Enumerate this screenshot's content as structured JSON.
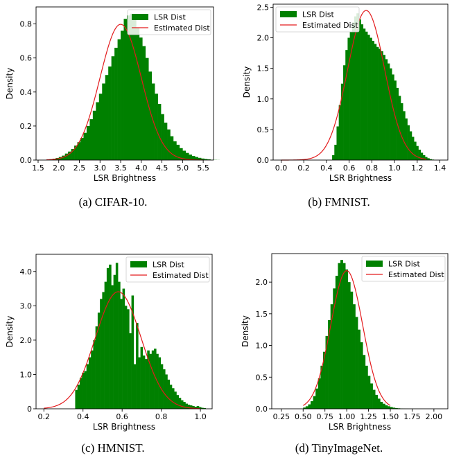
{
  "colors": {
    "hist": "#008000",
    "curve": "#e31a1c",
    "axis": "#000000",
    "legend_border": "#cccccc"
  },
  "legend": {
    "hist": "LSR Dist",
    "curve": "Estimated Dist"
  },
  "chart_data": [
    {
      "type": "bar",
      "caption": "(a) CIFAR-10.",
      "xlabel": "LSR Brightness",
      "ylabel": "Density",
      "xlim": [
        1.45,
        5.75
      ],
      "ylim": [
        0,
        0.9
      ],
      "xticks": [
        1.5,
        2.0,
        2.5,
        3.0,
        3.5,
        4.0,
        4.5,
        5.0,
        5.5
      ],
      "xtick_labels": [
        "1.5",
        "2.0",
        "2.5",
        "3.0",
        "3.5",
        "4.0",
        "4.5",
        "5.0",
        "5.5"
      ],
      "yticks": [
        0,
        0.2,
        0.4,
        0.6,
        0.8
      ],
      "ytick_labels": [
        "0.0",
        "0.2",
        "0.4",
        "0.6",
        "0.8"
      ],
      "legend_position": "top-right",
      "bin_start": 1.7,
      "bin_width": 0.075,
      "densities": [
        0.002,
        0.005,
        0.008,
        0.012,
        0.018,
        0.026,
        0.038,
        0.05,
        0.065,
        0.085,
        0.105,
        0.13,
        0.16,
        0.2,
        0.24,
        0.29,
        0.34,
        0.39,
        0.45,
        0.5,
        0.55,
        0.61,
        0.66,
        0.71,
        0.76,
        0.83,
        0.85,
        0.86,
        0.83,
        0.78,
        0.72,
        0.67,
        0.6,
        0.52,
        0.45,
        0.39,
        0.33,
        0.27,
        0.22,
        0.18,
        0.14,
        0.11,
        0.09,
        0.07,
        0.055,
        0.042,
        0.032,
        0.024,
        0.018,
        0.013,
        0.009,
        0.006,
        0.004,
        0.002,
        0.001,
        0.0005
      ],
      "curve": {
        "kind": "normal",
        "mu": 3.5,
        "sigma": 0.5,
        "x_range": [
          1.7,
          5.5
        ]
      }
    },
    {
      "type": "bar",
      "caption": "(b) FMNIST.",
      "xlabel": "LSR Brightness",
      "ylabel": "Density",
      "xlim": [
        -0.07,
        1.47
      ],
      "ylim": [
        0,
        2.55
      ],
      "xticks": [
        0.0,
        0.2,
        0.4,
        0.6,
        0.8,
        1.0,
        1.2,
        1.4
      ],
      "xtick_labels": [
        "0.0",
        "0.2",
        "0.4",
        "0.6",
        "0.8",
        "1.0",
        "1.2",
        "1.4"
      ],
      "yticks": [
        0,
        0.5,
        1.0,
        1.5,
        2.0,
        2.5
      ],
      "ytick_labels": [
        "0.0",
        "0.5",
        "1.0",
        "1.5",
        "2.0",
        "2.5"
      ],
      "legend_position": "top-left",
      "bin_start": 0.45,
      "bin_width": 0.0195,
      "densities": [
        0.08,
        0.25,
        0.55,
        0.9,
        1.25,
        1.55,
        1.8,
        2.0,
        2.1,
        2.25,
        2.35,
        2.4,
        2.3,
        2.22,
        2.15,
        2.1,
        2.05,
        2.0,
        1.95,
        1.9,
        1.85,
        1.82,
        1.78,
        1.72,
        1.65,
        1.58,
        1.5,
        1.4,
        1.3,
        1.18,
        1.05,
        0.93,
        0.8,
        0.68,
        0.57,
        0.47,
        0.38,
        0.3,
        0.23,
        0.17,
        0.12,
        0.08,
        0.05,
        0.03,
        0.015,
        0.008
      ],
      "curve": {
        "kind": "normal",
        "mu": 0.75,
        "sigma": 0.163,
        "x_range": [
          0.0,
          1.28
        ]
      }
    },
    {
      "type": "bar",
      "caption": "(c) HMNIST.",
      "xlabel": "LSR Brightness",
      "ylabel": "Density",
      "xlim": [
        0.16,
        1.06
      ],
      "ylim": [
        0,
        4.5
      ],
      "xticks": [
        0.2,
        0.4,
        0.6,
        0.8,
        1.0
      ],
      "xtick_labels": [
        "0.2",
        "0.4",
        "0.6",
        "0.8",
        "1.0"
      ],
      "yticks": [
        0,
        1.0,
        2.0,
        3.0,
        4.0
      ],
      "ytick_labels": [
        "0",
        "1.0",
        "2.0",
        "3.0",
        "4.0"
      ],
      "legend_position": "top-right",
      "bin_start": 0.36,
      "bin_width": 0.0115,
      "densities": [
        0.55,
        0.7,
        0.9,
        1.05,
        1.1,
        1.3,
        1.5,
        1.7,
        2.0,
        2.4,
        2.8,
        3.2,
        3.4,
        3.7,
        4.1,
        4.2,
        3.6,
        3.9,
        4.25,
        3.7,
        3.2,
        3.5,
        3.0,
        2.9,
        2.2,
        3.3,
        1.3,
        2.5,
        1.5,
        1.8,
        1.55,
        1.45,
        1.7,
        1.6,
        1.7,
        1.75,
        1.6,
        1.5,
        1.3,
        1.15,
        1.0,
        0.85,
        0.7,
        0.6,
        0.5,
        0.4,
        0.32,
        0.25,
        0.2,
        0.15,
        0.12,
        0.1,
        0.08,
        0.06,
        0.08,
        0.05,
        0.03,
        0.02
      ],
      "curve": {
        "kind": "normal",
        "mu": 0.58,
        "sigma": 0.117,
        "x_range": [
          0.2,
          1.0
        ]
      }
    },
    {
      "type": "bar",
      "caption": "(d) TinyImageNet.",
      "xlabel": "LSR Brightness",
      "ylabel": "Density",
      "xlim": [
        0.14,
        2.16
      ],
      "ylim": [
        0,
        2.45
      ],
      "xticks": [
        0.25,
        0.5,
        0.75,
        1.0,
        1.25,
        1.5,
        1.75,
        2.0
      ],
      "xtick_labels": [
        "0.25",
        "0.50",
        "0.75",
        "1.00",
        "1.25",
        "1.50",
        "1.75",
        "2.00"
      ],
      "yticks": [
        0,
        0.5,
        1.0,
        1.5,
        2.0
      ],
      "ytick_labels": [
        "0.0",
        "0.5",
        "1.0",
        "1.5",
        "2.0"
      ],
      "legend_position": "top-right",
      "bin_start": 0.5,
      "bin_width": 0.0285,
      "densities": [
        0.02,
        0.04,
        0.07,
        0.12,
        0.2,
        0.32,
        0.48,
        0.68,
        0.9,
        1.15,
        1.4,
        1.65,
        1.9,
        2.1,
        2.3,
        2.35,
        2.3,
        2.2,
        2.0,
        1.85,
        1.65,
        1.45,
        1.25,
        1.05,
        0.85,
        0.68,
        0.52,
        0.4,
        0.3,
        0.22,
        0.16,
        0.11,
        0.08,
        0.055,
        0.04,
        0.028,
        0.018,
        0.012,
        0.008,
        0.005,
        0.003,
        0.002,
        0.001,
        0.001,
        0.0008,
        0.0006,
        0.0004,
        0.0003,
        0.0002,
        0.0001,
        0.0001,
        0.0001,
        0.0001,
        5e-05
      ],
      "curve": {
        "kind": "normal",
        "mu": 1.0,
        "sigma": 0.183,
        "x_range": [
          0.5,
          1.5
        ]
      }
    }
  ]
}
